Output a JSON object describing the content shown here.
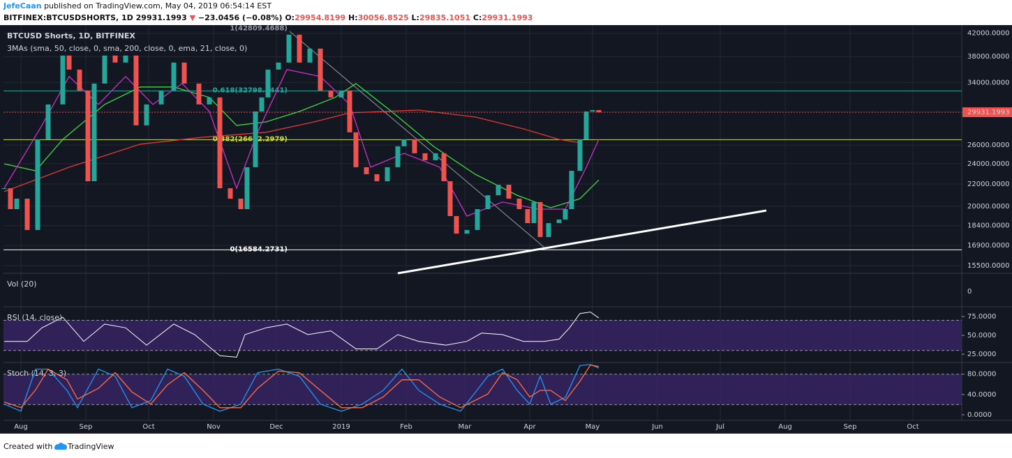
{
  "header": {
    "author": "JefeCaan",
    "published": "published on TradingView.com, May 04, 2019 06:54:14 EST"
  },
  "ticker": {
    "symbol": "BITFINEX:BTCUSDSHORTS, 1D",
    "price": "29931.1993",
    "change_arrow": "▼",
    "change": "−23.0456 (−0.08%)",
    "open_label": "O:",
    "open": "29954.8199",
    "high_label": "H:",
    "high": "30056.8525",
    "low_label": "L:",
    "low": "29835.1051",
    "close_label": "C:",
    "close": "29931.1993"
  },
  "footer": {
    "text": "Created with",
    "brand": "TradingView"
  },
  "chart_data": [
    {
      "type": "candlestick",
      "title": "BTCUSD Shorts, 1D, BITFINEX",
      "subtitle": "3MAs (sma, 50, close, 0, sma, 200, close, 0, ema, 21, close, 0)",
      "x": [
        -8,
        -5,
        -2,
        3,
        8,
        13,
        20,
        23,
        28,
        32,
        35,
        40,
        45,
        50,
        55,
        60,
        67,
        73,
        78,
        85,
        90,
        95,
        100,
        105,
        108,
        112,
        115,
        118,
        123,
        128,
        133,
        138,
        143,
        148,
        153,
        157,
        160,
        165,
        170,
        175,
        180,
        183,
        188,
        193,
        198,
        202,
        205,
        208,
        213,
        218,
        223,
        228,
        233,
        238,
        242,
        245,
        248,
        252,
        257,
        260,
        263,
        267,
        270,
        273,
        276
      ],
      "close": [
        21600,
        19750,
        20660,
        18060,
        26640,
        30950,
        38170,
        35940,
        32850,
        22260,
        33850,
        38170,
        37040,
        38170,
        28290,
        30950,
        32850,
        37040,
        33850,
        30950,
        31890,
        21600,
        20660,
        19750,
        23640,
        30030,
        31890,
        35940,
        37040,
        41750,
        37040,
        39320,
        32850,
        31890,
        32850,
        27460,
        23640,
        22940,
        22260,
        23640,
        25860,
        26640,
        25100,
        24360,
        25100,
        22260,
        19170,
        17780,
        18060,
        19750,
        20960,
        21930,
        20660,
        19750,
        18600,
        20360,
        17520,
        18600,
        18890,
        19750,
        23280,
        26640,
        30030,
        30210,
        29931.1993
      ],
      "up_color": "#26a69a",
      "down_color": "#ef5350",
      "log_scale": true,
      "ylim": [
        15000,
        43500
      ],
      "yticks": [
        {
          "value": 42000,
          "label": "42000.0000"
        },
        {
          "value": 38000,
          "label": "38000.0000"
        },
        {
          "value": 34000,
          "label": "34000.0000"
        },
        {
          "value": 26000,
          "label": "26000.0000"
        },
        {
          "value": 24000,
          "label": "24000.0000"
        },
        {
          "value": 22000,
          "label": "22000.0000"
        },
        {
          "value": 20000,
          "label": "20000.0000"
        },
        {
          "value": 18400,
          "label": "18400.0000"
        },
        {
          "value": 16900,
          "label": "16900.0000"
        },
        {
          "value": 15500,
          "label": "15500.0000"
        }
      ],
      "xlim": [
        -8.33,
        449.33
      ],
      "xticks": [
        {
          "value": 0,
          "label": "Aug"
        },
        {
          "value": 31,
          "label": "Sep"
        },
        {
          "value": 61,
          "label": "Oct"
        },
        {
          "value": 92,
          "label": "Nov"
        },
        {
          "value": 122,
          "label": "Dec"
        },
        {
          "value": 153,
          "label": "2019"
        },
        {
          "value": 184,
          "label": "Feb"
        },
        {
          "value": 212,
          "label": "Mar"
        },
        {
          "value": 243,
          "label": "Apr"
        },
        {
          "value": 273,
          "label": "May"
        },
        {
          "value": 304,
          "label": "Jun"
        },
        {
          "value": 334,
          "label": "Jul"
        },
        {
          "value": 365,
          "label": "Aug"
        },
        {
          "value": 396,
          "label": "Sep"
        },
        {
          "value": 426,
          "label": "Oct"
        }
      ],
      "grid": true,
      "ma_lines": [
        {
          "color": "#e53935",
          "x": [
            -8,
            23,
            57,
            87,
            117,
            140,
            157,
            190,
            217,
            240,
            257,
            267
          ],
          "values": [
            21290,
            23640,
            26100,
            26890,
            27460,
            28710,
            29850,
            30210,
            29320,
            27870,
            26640,
            26250
          ]
        },
        {
          "color": "#3ddc3d",
          "x": [
            -8,
            7,
            20,
            40,
            57,
            73,
            90,
            103,
            117,
            133,
            150,
            160,
            177,
            197,
            217,
            237,
            253,
            267,
            276
          ],
          "values": [
            23990,
            23280,
            26640,
            30950,
            33350,
            33350,
            31890,
            28290,
            28710,
            30030,
            31890,
            33850,
            30030,
            25860,
            22940,
            20960,
            19870,
            20660,
            22390
          ]
        },
        {
          "color": "#c832c8",
          "x": [
            -8,
            10,
            23,
            37,
            50,
            63,
            77,
            90,
            103,
            113,
            127,
            143,
            157,
            167,
            183,
            200,
            213,
            230,
            247,
            260,
            270,
            276
          ],
          "values": [
            21600,
            28290,
            34890,
            30950,
            34890,
            30950,
            33850,
            30030,
            21600,
            27460,
            35940,
            34890,
            30950,
            23640,
            25100,
            23640,
            19170,
            20360,
            19750,
            19750,
            23640,
            26640
          ]
        }
      ],
      "fib_levels": [
        {
          "value": 42809.4688,
          "label": "1(42809.4688)"
        },
        {
          "value": 32798.4441,
          "label": "0.618(32798.4441)",
          "color": "#26a69a"
        },
        {
          "value": 26602.2979,
          "label": "0.382(26602.2979)",
          "color": "#cddc39"
        },
        {
          "value": 16584.2731,
          "label": "0(16584.2731)",
          "color": "#ffffff"
        }
      ],
      "last_price_color": "#ef5350"
    },
    {
      "type": "volume",
      "title": "Vol (20)",
      "yticks": [
        0
      ]
    },
    {
      "type": "line",
      "title": "RSI (14, close)",
      "x": [
        -8,
        3,
        10,
        20,
        30,
        40,
        50,
        60,
        73,
        83,
        95,
        103,
        107,
        117,
        127,
        137,
        148,
        160,
        170,
        180,
        190,
        203,
        213,
        220,
        230,
        240,
        250,
        257,
        262,
        267,
        272,
        276
      ],
      "values": [
        42,
        42,
        60,
        74,
        42,
        65,
        60,
        37,
        65,
        51,
        23,
        21,
        51,
        60,
        65,
        51,
        56,
        32,
        32,
        51,
        42,
        37,
        42,
        53,
        51,
        42,
        42,
        45,
        60,
        79,
        81,
        73
      ],
      "color": "#ffffff",
      "ylim": [
        14,
        88
      ],
      "yticks": [
        {
          "value": 75,
          "label": "75.0000"
        },
        {
          "value": 50,
          "label": "50.0000"
        },
        {
          "value": 25,
          "label": "25.0000"
        }
      ],
      "band": [
        30,
        70
      ],
      "band_color": "#3a2468"
    },
    {
      "type": "line",
      "title": "Stoch (14, 3, 3)",
      "x": [
        -8,
        0,
        7,
        13,
        22,
        27,
        37,
        45,
        53,
        62,
        70,
        78,
        87,
        95,
        105,
        113,
        123,
        133,
        143,
        153,
        163,
        173,
        182,
        190,
        200,
        210,
        223,
        230,
        237,
        243,
        248,
        253,
        260,
        267,
        272,
        276
      ],
      "series": [
        {
          "color": "#2196f3",
          "values": [
            21,
            7,
            90,
            90,
            48,
            14,
            90,
            76,
            14,
            28,
            90,
            76,
            21,
            7,
            21,
            83,
            90,
            76,
            21,
            7,
            21,
            48,
            90,
            48,
            21,
            7,
            76,
            90,
            48,
            21,
            76,
            21,
            34,
            97,
            99,
            92
          ]
        },
        {
          "color": "#ff7043",
          "values": [
            25,
            14,
            49,
            90,
            69,
            31,
            52,
            83,
            45,
            21,
            59,
            83,
            48,
            14,
            14,
            52,
            86,
            83,
            48,
            14,
            14,
            35,
            69,
            69,
            35,
            14,
            41,
            83,
            69,
            35,
            48,
            48,
            28,
            66,
            98,
            95
          ]
        }
      ],
      "ylim": [
        -11,
        103
      ],
      "yticks": [
        {
          "value": 80,
          "label": "80.0000"
        },
        {
          "value": 40,
          "label": "40.0000"
        },
        {
          "value": 0,
          "label": "0.0000"
        }
      ],
      "band": [
        20,
        80
      ],
      "band_color": "#3a2468"
    }
  ]
}
